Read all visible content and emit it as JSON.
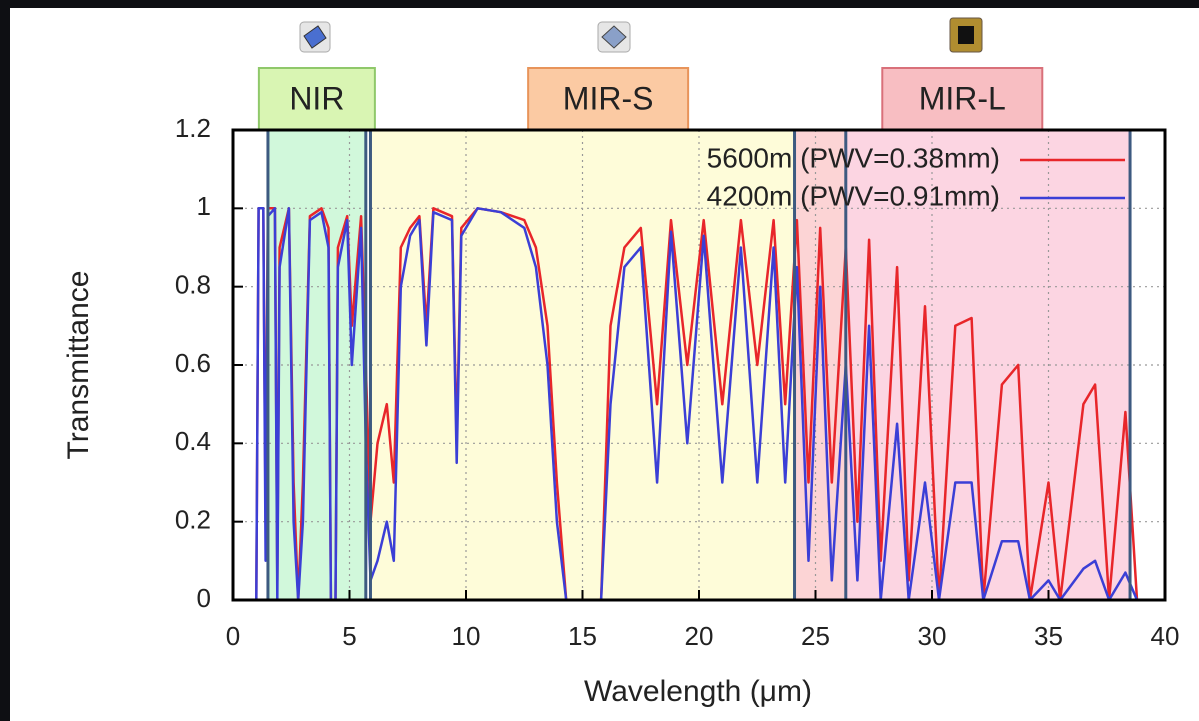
{
  "chart_data": {
    "type": "line",
    "xlabel": "Wavelength (μm)",
    "ylabel": "Transmittance",
    "x": [
      1.0,
      1.1,
      1.3,
      1.4,
      1.5,
      1.8,
      1.9,
      2.0,
      2.4,
      2.6,
      2.8,
      3.0,
      3.3,
      3.8,
      4.1,
      4.2,
      4.4,
      4.5,
      4.9,
      5.1,
      5.5,
      5.7,
      5.9,
      6.2,
      6.6,
      6.9,
      7.2,
      7.6,
      8.0,
      8.3,
      8.6,
      9.4,
      9.6,
      9.8,
      10.5,
      11.5,
      12.5,
      13.0,
      13.5,
      13.9,
      14.3,
      15.8,
      16.2,
      16.8,
      17.5,
      18.2,
      18.8,
      19.5,
      20.2,
      21.0,
      21.8,
      22.5,
      23.2,
      23.7,
      24.2,
      24.7,
      25.2,
      25.7,
      26.3,
      26.8,
      27.3,
      27.8,
      28.5,
      29.0,
      29.7,
      30.3,
      31.0,
      31.7,
      32.2,
      33.0,
      33.7,
      34.2,
      35.0,
      35.5,
      36.5,
      37.0,
      37.6,
      38.3,
      38.8
    ],
    "series": [
      {
        "name": "5600m (PWV=0.38mm)",
        "color": "#e8262a",
        "values": [
          0,
          1.0,
          1.0,
          0.2,
          1.0,
          1.0,
          0.05,
          0.9,
          1.0,
          0.3,
          0,
          0.3,
          0.98,
          1.0,
          0.95,
          0,
          0,
          0.9,
          0.98,
          0.7,
          0.98,
          0.6,
          0.2,
          0.4,
          0.5,
          0.3,
          0.9,
          0.95,
          0.98,
          0.7,
          1.0,
          0.98,
          0.4,
          0.95,
          1.0,
          0.99,
          0.97,
          0.9,
          0.7,
          0.3,
          0,
          0,
          0.7,
          0.9,
          0.95,
          0.5,
          0.97,
          0.6,
          0.97,
          0.5,
          0.97,
          0.6,
          0.97,
          0.5,
          0.97,
          0.3,
          0.95,
          0.3,
          0.9,
          0.2,
          0.92,
          0.1,
          0.85,
          0.05,
          0.75,
          0,
          0.7,
          0.72,
          0,
          0.55,
          0.6,
          0,
          0.3,
          0,
          0.5,
          0.55,
          0,
          0.48,
          0
        ]
      },
      {
        "name": "4200m (PWV=0.91mm)",
        "color": "#3b3fd6",
        "values": [
          0,
          1.0,
          1.0,
          0.1,
          0.98,
          1.0,
          0,
          0.85,
          1.0,
          0.2,
          0,
          0.2,
          0.97,
          0.99,
          0.9,
          0,
          0,
          0.85,
          0.97,
          0.6,
          0.95,
          0.4,
          0.05,
          0.1,
          0.2,
          0.1,
          0.8,
          0.93,
          0.97,
          0.65,
          0.99,
          0.97,
          0.35,
          0.93,
          1.0,
          0.99,
          0.95,
          0.85,
          0.6,
          0.2,
          0,
          0,
          0.5,
          0.85,
          0.9,
          0.3,
          0.94,
          0.4,
          0.93,
          0.3,
          0.9,
          0.3,
          0.9,
          0.3,
          0.85,
          0.1,
          0.8,
          0.05,
          0.6,
          0.05,
          0.7,
          0,
          0.45,
          0,
          0.3,
          0,
          0.3,
          0.3,
          0,
          0.15,
          0.15,
          0,
          0.05,
          0,
          0.08,
          0.1,
          0,
          0.07,
          0
        ]
      }
    ],
    "regions": [
      {
        "label": "NIR",
        "range": [
          1.5,
          5.7
        ],
        "color": "#b8f5c8",
        "label_color": "#d9f5b3",
        "label_border": "#8fc86a"
      },
      {
        "label": "MIR-S",
        "range": [
          5.9,
          26.3
        ],
        "color": "#fdfbc4",
        "label_color": "#fbcaa3",
        "label_border": "#e8945a"
      },
      {
        "label": "MIR-L",
        "range": [
          24.1,
          38.5
        ],
        "color": "#fbbfd2",
        "label_color": "#f8bec2",
        "label_border": "#d9707a"
      }
    ],
    "xlim": [
      0,
      40
    ],
    "xticks": [
      0,
      5,
      10,
      15,
      20,
      25,
      30,
      35,
      40
    ],
    "ylim": [
      0,
      1.2
    ],
    "yticks": [
      0,
      0.2,
      0.4,
      0.6,
      0.8,
      1,
      1.2
    ],
    "grid": true,
    "legend": "upper right"
  }
}
